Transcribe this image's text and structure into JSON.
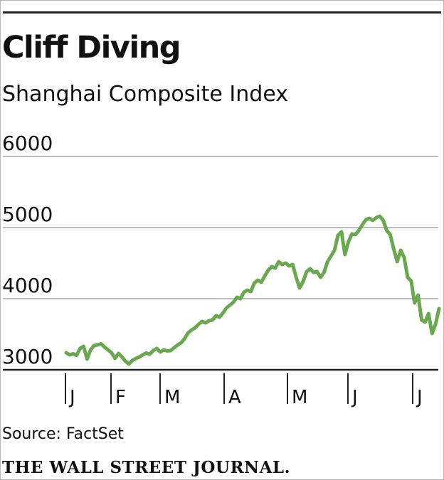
{
  "header": {
    "title": "Cliff Diving",
    "subtitle": "Shanghai Composite Index"
  },
  "footer": {
    "source": "Source: FactSet",
    "credit": "THE WALL STREET JOURNAL."
  },
  "colors": {
    "line": "#6aa84f",
    "grid": "#bdbdbd",
    "axis": "#222222",
    "text": "#111111"
  },
  "chart_data": {
    "type": "line",
    "title": "Cliff Diving",
    "subtitle": "Shanghai Composite Index",
    "xlabel": "",
    "ylabel": "",
    "ylim": [
      3000,
      6000
    ],
    "yticks": [
      3000,
      4000,
      5000,
      6000
    ],
    "ytick_labels": [
      "3000",
      "4000",
      "5000",
      "6000"
    ],
    "xtick_labels": [
      "J",
      "F",
      "M",
      "A",
      "M",
      "J",
      "J"
    ],
    "grid": true,
    "legend": "none",
    "series": [
      {
        "values": [
          3240,
          3210,
          3225,
          3205,
          3300,
          3330,
          3150,
          3280,
          3340,
          3350,
          3365,
          3320,
          3280,
          3240,
          3160,
          3230,
          3180,
          3120,
          3080,
          3130,
          3160,
          3180,
          3210,
          3235,
          3220,
          3270,
          3300,
          3250,
          3280,
          3265,
          3270,
          3310,
          3350,
          3380,
          3440,
          3520,
          3560,
          3590,
          3640,
          3680,
          3660,
          3690,
          3700,
          3760,
          3740,
          3800,
          3870,
          3910,
          3950,
          4020,
          4000,
          4090,
          4120,
          4100,
          4220,
          4260,
          4230,
          4320,
          4400,
          4450,
          4430,
          4520,
          4480,
          4500,
          4460,
          4480,
          4300,
          4150,
          4240,
          4380,
          4420,
          4370,
          4380,
          4300,
          4370,
          4520,
          4600,
          4680,
          4890,
          4940,
          4620,
          4800,
          4910,
          4900,
          4960,
          5040,
          5110,
          5130,
          5100,
          5140,
          5160,
          5100,
          4960,
          4900,
          4700,
          4520,
          4680,
          4580,
          4300,
          4250,
          3940,
          4050,
          3700,
          3670,
          3790,
          3510,
          3640,
          3860
        ]
      }
    ]
  }
}
